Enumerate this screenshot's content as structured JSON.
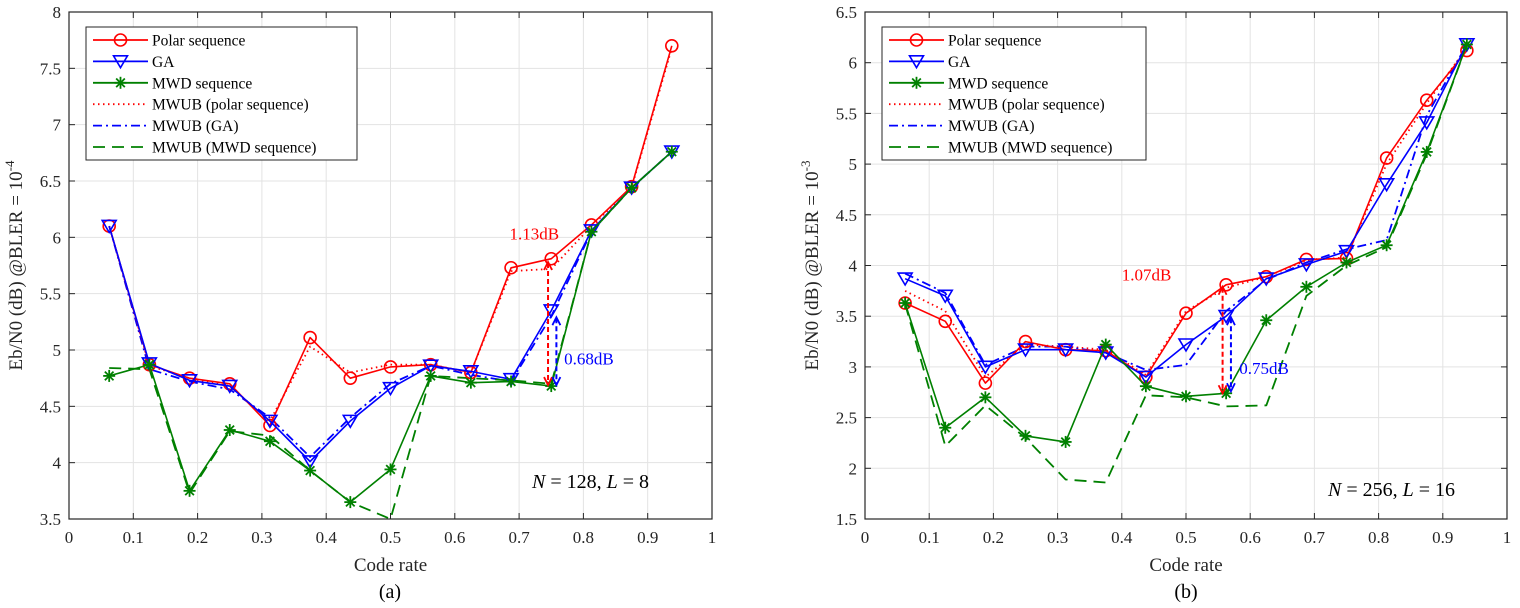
{
  "colors": {
    "polar": "#ff0000",
    "ga": "#0000ff",
    "mwd": "#008000",
    "grid": "#e3e3e3",
    "axis": "#262626"
  },
  "chart_data": [
    {
      "type": "line",
      "panel_label": "(a)",
      "title": "",
      "xlabel": "Code rate",
      "ylabel": "Eb/N0 (dB) @BLER = 10",
      "ylabel_exponent": "-4",
      "xlim": [
        0,
        1
      ],
      "ylim": [
        3.5,
        8
      ],
      "xticks": [
        "0",
        "0.1",
        "0.2",
        "0.3",
        "0.4",
        "0.5",
        "0.6",
        "0.7",
        "0.8",
        "0.9",
        "1"
      ],
      "yticks": [
        "3.5",
        "4",
        "4.5",
        "5",
        "5.5",
        "6",
        "6.5",
        "7",
        "7.5",
        "8"
      ],
      "grid": true,
      "legend_position": "top-left",
      "param_text": {
        "n_sym": "N",
        "n_val": " = 128, ",
        "l_sym": "L",
        "l_val": " = 8"
      },
      "x": [
        0.0625,
        0.125,
        0.1875,
        0.25,
        0.3125,
        0.375,
        0.4375,
        0.5,
        0.5625,
        0.625,
        0.6875,
        0.75,
        0.8125,
        0.875,
        0.9375
      ],
      "series": [
        {
          "name": "Polar sequence",
          "color_key": "polar",
          "style": "solid",
          "marker": "circle",
          "values": [
            6.1,
            4.87,
            4.75,
            4.7,
            4.33,
            5.11,
            4.75,
            4.85,
            4.87,
            4.8,
            5.73,
            5.81,
            6.11,
            6.45,
            7.7
          ]
        },
        {
          "name": "GA",
          "color_key": "ga",
          "style": "solid",
          "marker": "triangle-down",
          "values": [
            6.1,
            4.88,
            4.73,
            4.68,
            4.37,
            4.01,
            4.37,
            4.66,
            4.86,
            4.81,
            4.74,
            5.35,
            6.06,
            6.44,
            6.76
          ]
        },
        {
          "name": "MWD sequence",
          "color_key": "mwd",
          "style": "solid",
          "marker": "asterisk",
          "values": [
            4.77,
            4.87,
            3.75,
            4.29,
            4.19,
            3.93,
            3.65,
            3.94,
            4.77,
            4.71,
            4.72,
            4.68,
            6.05,
            6.44,
            6.76
          ]
        },
        {
          "name": "MWUB (polar sequence)",
          "color_key": "polar",
          "style": "dotted",
          "marker": "none",
          "values": [
            6.1,
            4.86,
            4.75,
            4.68,
            4.37,
            5.03,
            4.8,
            4.87,
            4.87,
            4.8,
            5.7,
            5.72,
            6.1,
            6.44,
            7.68
          ]
        },
        {
          "name": "MWUB (GA)",
          "color_key": "ga",
          "style": "dashdot",
          "marker": "none",
          "values": [
            6.1,
            4.83,
            4.72,
            4.65,
            4.4,
            4.05,
            4.4,
            4.7,
            4.86,
            4.78,
            4.72,
            5.3,
            6.05,
            6.44,
            6.76
          ]
        },
        {
          "name": "MWUB (MWD sequence)",
          "color_key": "mwd",
          "style": "dashed",
          "marker": "none",
          "values": [
            4.84,
            4.83,
            3.73,
            4.28,
            4.24,
            3.93,
            3.65,
            3.5,
            4.77,
            4.75,
            4.73,
            4.7,
            6.05,
            6.44,
            6.76
          ]
        }
      ],
      "annotations": [
        {
          "text": "1.13dB",
          "color_key": "polar",
          "x": 0.745,
          "y_from": 5.79,
          "y_to": 4.68,
          "label_x": 0.685,
          "label_y": 5.98
        },
        {
          "text": "0.68dB",
          "color_key": "ga",
          "x": 0.758,
          "y_from": 5.3,
          "y_to": 4.68,
          "label_x": 0.77,
          "label_y": 4.87
        }
      ]
    },
    {
      "type": "line",
      "panel_label": "(b)",
      "title": "",
      "xlabel": "Code rate",
      "ylabel": "Eb/N0 (dB) @BLER = 10",
      "ylabel_exponent": "-3",
      "xlim": [
        0,
        1
      ],
      "ylim": [
        1.5,
        6.5
      ],
      "xticks": [
        "0",
        "0.1",
        "0.2",
        "0.3",
        "0.4",
        "0.5",
        "0.6",
        "0.7",
        "0.8",
        "0.9",
        "1"
      ],
      "yticks": [
        "1.5",
        "2",
        "2.5",
        "3",
        "3.5",
        "4",
        "4.5",
        "5",
        "5.5",
        "6",
        "6.5"
      ],
      "grid": true,
      "legend_position": "top-left",
      "param_text": {
        "n_sym": "N",
        "n_val": " = 256, ",
        "l_sym": "L",
        "l_val": " = 16"
      },
      "x": [
        0.0625,
        0.125,
        0.1875,
        0.25,
        0.3125,
        0.375,
        0.4375,
        0.5,
        0.5625,
        0.625,
        0.6875,
        0.75,
        0.8125,
        0.875,
        0.9375
      ],
      "series": [
        {
          "name": "Polar sequence",
          "color_key": "polar",
          "style": "solid",
          "marker": "circle",
          "values": [
            3.63,
            3.45,
            2.84,
            3.25,
            3.17,
            3.16,
            2.9,
            3.53,
            3.81,
            3.89,
            4.06,
            4.07,
            5.06,
            5.63,
            6.12
          ]
        },
        {
          "name": "GA",
          "color_key": "ga",
          "style": "solid",
          "marker": "triangle-down",
          "values": [
            3.87,
            3.7,
            3.0,
            3.17,
            3.17,
            3.14,
            2.9,
            3.22,
            3.5,
            3.87,
            4.01,
            4.14,
            4.8,
            5.41,
            6.18
          ]
        },
        {
          "name": "MWD sequence",
          "color_key": "mwd",
          "style": "solid",
          "marker": "asterisk",
          "values": [
            3.63,
            2.4,
            2.7,
            2.32,
            2.26,
            3.22,
            2.81,
            2.71,
            2.74,
            3.46,
            3.79,
            4.03,
            4.2,
            5.12,
            6.18
          ]
        },
        {
          "name": "MWUB (polar sequence)",
          "color_key": "polar",
          "style": "dotted",
          "marker": "none",
          "values": [
            3.75,
            3.55,
            2.9,
            3.22,
            3.2,
            3.17,
            2.92,
            3.55,
            3.78,
            3.89,
            4.05,
            4.08,
            5.0,
            5.6,
            6.15
          ]
        },
        {
          "name": "MWUB (GA)",
          "color_key": "ga",
          "style": "dashdot",
          "marker": "none",
          "values": [
            3.92,
            3.73,
            3.02,
            3.2,
            3.2,
            3.14,
            2.97,
            3.02,
            3.55,
            3.86,
            4.03,
            4.16,
            4.25,
            5.48,
            6.18
          ]
        },
        {
          "name": "MWUB (MWD sequence)",
          "color_key": "mwd",
          "style": "dashed",
          "marker": "none",
          "values": [
            3.62,
            2.22,
            2.62,
            2.3,
            1.89,
            1.86,
            2.72,
            2.7,
            2.61,
            2.62,
            3.7,
            4.0,
            4.18,
            5.1,
            6.18
          ]
        }
      ],
      "annotations": [
        {
          "text": "1.07dB",
          "color_key": "polar",
          "x": 0.557,
          "y_from": 3.8,
          "y_to": 2.73,
          "label_x": 0.4,
          "label_y": 3.85
        },
        {
          "text": "0.75dB",
          "color_key": "ga",
          "x": 0.57,
          "y_from": 3.5,
          "y_to": 2.75,
          "label_x": 0.583,
          "label_y": 2.93
        }
      ]
    }
  ]
}
